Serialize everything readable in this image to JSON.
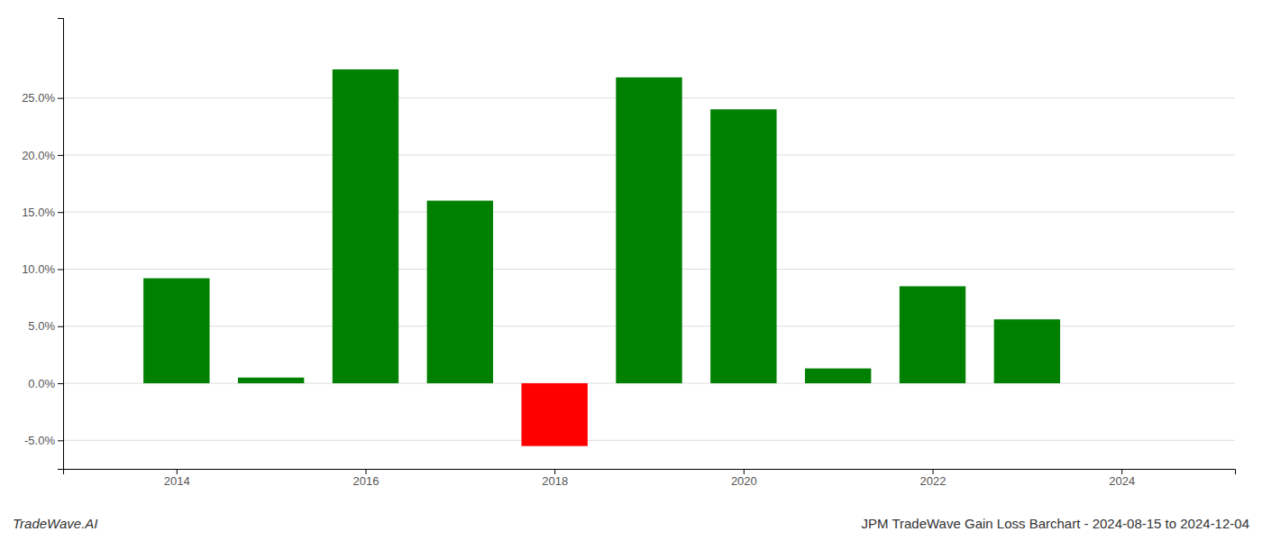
{
  "chart_data": {
    "type": "bar",
    "title": "JPM TradeWave Gain Loss Barchart - 2024-08-15 to 2024-12-04",
    "annotations": [
      "TradeWave.AI"
    ],
    "x": [
      2014,
      2015,
      2016,
      2017,
      2018,
      2019,
      2020,
      2021,
      2022,
      2023
    ],
    "values": [
      0.092,
      0.005,
      0.275,
      0.16,
      -0.055,
      0.268,
      0.24,
      0.013,
      0.085,
      0.056
    ],
    "colors": [
      "#008000",
      "#008000",
      "#008000",
      "#008000",
      "#ff0000",
      "#008000",
      "#008000",
      "#008000",
      "#008000",
      "#008000"
    ],
    "xlim": [
      2012.8,
      2025.2
    ],
    "xticks": [
      2014,
      2016,
      2018,
      2020,
      2022,
      2024
    ],
    "ylim": [
      -0.075,
      0.32
    ],
    "yticks": [
      {
        "value": -0.05,
        "label": "-5.0%"
      },
      {
        "value": 0.0,
        "label": "0.0%"
      },
      {
        "value": 0.05,
        "label": "5.0%"
      },
      {
        "value": 0.1,
        "label": "10.0%"
      },
      {
        "value": 0.15,
        "label": "15.0%"
      },
      {
        "value": 0.2,
        "label": "20.0%"
      },
      {
        "value": 0.25,
        "label": "25.0%"
      }
    ],
    "grid": true
  }
}
